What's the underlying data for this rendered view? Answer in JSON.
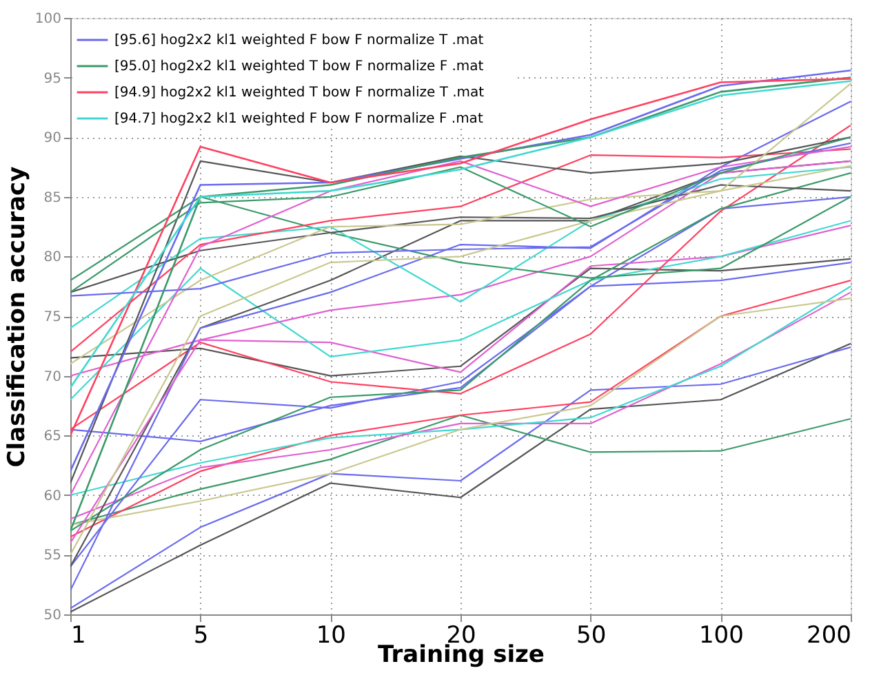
{
  "chart_data": {
    "type": "line",
    "xlabel": "Training size",
    "ylabel": "Classification accuracy",
    "categories": [
      "1",
      "5",
      "10",
      "20",
      "50",
      "100",
      "200"
    ],
    "ylim": [
      50,
      100
    ],
    "yticks": [
      50,
      55,
      60,
      65,
      70,
      75,
      80,
      85,
      90,
      95,
      100
    ],
    "grid": true,
    "legend": "top left",
    "series": [
      {
        "color": "#555555",
        "values": [
          50.2,
          55.8,
          61.0,
          59.8,
          67.2,
          68.0,
          72.7
        ]
      },
      {
        "color": "#6a6aee",
        "values": [
          50.5,
          57.3,
          61.8,
          61.2,
          68.8,
          69.3,
          72.4
        ]
      },
      {
        "color": "#3a9a6a",
        "values": [
          57.5,
          60.5,
          63.0,
          66.7,
          63.6,
          63.7,
          66.4
        ]
      },
      {
        "color": "#ff4060",
        "values": [
          56.5,
          62.0,
          65.0,
          66.7,
          67.8,
          75.0,
          78.0
        ]
      },
      {
        "color": "#e060d0",
        "values": [
          58.0,
          62.3,
          63.8,
          66.0,
          66.0,
          71.0,
          77.0
        ]
      },
      {
        "color": "#40d8d0",
        "values": [
          60.0,
          62.7,
          64.8,
          65.5,
          66.5,
          70.8,
          77.5
        ]
      },
      {
        "color": "#c8c890",
        "values": [
          57.5,
          59.5,
          61.8,
          65.5,
          67.5,
          75.0,
          76.5
        ]
      },
      {
        "color": "#6a6aee",
        "values": [
          65.5,
          64.5,
          67.5,
          69.0,
          77.5,
          78.0,
          79.5
        ]
      },
      {
        "color": "#6a6aee",
        "values": [
          54.0,
          68.0,
          67.3,
          69.5,
          77.5,
          84.0,
          85.0
        ]
      },
      {
        "color": "#555555",
        "values": [
          71.5,
          72.3,
          70.0,
          70.8,
          79.0,
          78.8,
          79.8
        ]
      },
      {
        "color": "#e060d0",
        "values": [
          70.0,
          73.0,
          72.8,
          70.3,
          79.2,
          80.0,
          82.6
        ]
      },
      {
        "color": "#40d8d0",
        "values": [
          68.0,
          79.0,
          71.6,
          73.0,
          78.0,
          80.0,
          83.0
        ]
      },
      {
        "color": "#ff4060",
        "values": [
          65.5,
          72.8,
          69.5,
          68.5,
          73.5,
          83.8,
          91.0
        ]
      },
      {
        "color": "#3a9a6a",
        "values": [
          57.0,
          63.8,
          68.2,
          68.8,
          78.0,
          84.0,
          87.0
        ]
      },
      {
        "color": "#555555",
        "values": [
          54.0,
          74.0,
          78.0,
          83.0,
          83.0,
          87.0,
          88.0
        ]
      },
      {
        "color": "#6a6aee",
        "values": [
          52.0,
          74.0,
          77.0,
          81.0,
          80.7,
          87.5,
          93.0
        ]
      },
      {
        "color": "#e060d0",
        "values": [
          56.0,
          73.0,
          75.5,
          76.8,
          80.0,
          87.0,
          88.0
        ]
      },
      {
        "color": "#3a9a6a",
        "values": [
          78.0,
          85.0,
          82.0,
          79.5,
          78.2,
          79.0,
          85.0
        ]
      },
      {
        "color": "#40d8d0",
        "values": [
          74.0,
          81.5,
          82.5,
          76.2,
          83.0,
          86.5,
          87.5
        ]
      },
      {
        "color": "#555555",
        "values": [
          77.0,
          80.5,
          82.0,
          83.3,
          83.2,
          86.0,
          85.5
        ]
      },
      {
        "color": "#c8c890",
        "values": [
          71.0,
          78.0,
          82.5,
          82.7,
          84.8,
          85.5,
          87.6
        ]
      },
      {
        "color": "#ff4060",
        "values": [
          72.0,
          81.0,
          83.0,
          84.2,
          88.5,
          88.3,
          89.0
        ]
      },
      {
        "color": "#6a6aee",
        "values": [
          76.7,
          77.3,
          80.3,
          80.6,
          80.8,
          87.2,
          89.5
        ]
      },
      {
        "color": "#e060d0",
        "values": [
          60.0,
          80.8,
          85.5,
          88.0,
          84.2,
          87.5,
          89.2
        ]
      },
      {
        "color": "#555555",
        "values": [
          61.0,
          88.0,
          86.2,
          88.4,
          87.0,
          87.8,
          90.0
        ]
      },
      {
        "color": "#c8c890",
        "values": [
          55.0,
          75.0,
          79.5,
          80.0,
          83.0,
          85.5,
          94.5
        ]
      },
      {
        "color": "#3a9a6a",
        "values": [
          77.0,
          84.5,
          85.0,
          87.5,
          82.5,
          87.0,
          90.0
        ]
      },
      {
        "name": "[95.6]  hog2x2  kl1  weighted F  bow F  normalize T  .mat",
        "color": "#6a6aee",
        "values": [
          62.0,
          86.0,
          86.2,
          88.2,
          90.2,
          94.3,
          95.6
        ]
      },
      {
        "name": "[95.0]  hog2x2  kl1  weighted T  bow F  normalize F  .mat",
        "color": "#3a9a6a",
        "values": [
          57.0,
          85.0,
          86.0,
          88.3,
          90.0,
          93.8,
          95.0
        ]
      },
      {
        "name": "[94.9]  hog2x2  kl1  weighted T  bow F  normalize T  .mat",
        "color": "#ff4060",
        "values": [
          65.0,
          89.2,
          86.2,
          87.8,
          91.5,
          94.6,
          94.9
        ]
      },
      {
        "name": "[94.7]  hog2x2  kl1  weighted F  bow F  normalize F  .mat",
        "color": "#40d8d0",
        "values": [
          69.0,
          85.0,
          85.5,
          87.3,
          90.0,
          93.5,
          94.7
        ]
      }
    ]
  }
}
